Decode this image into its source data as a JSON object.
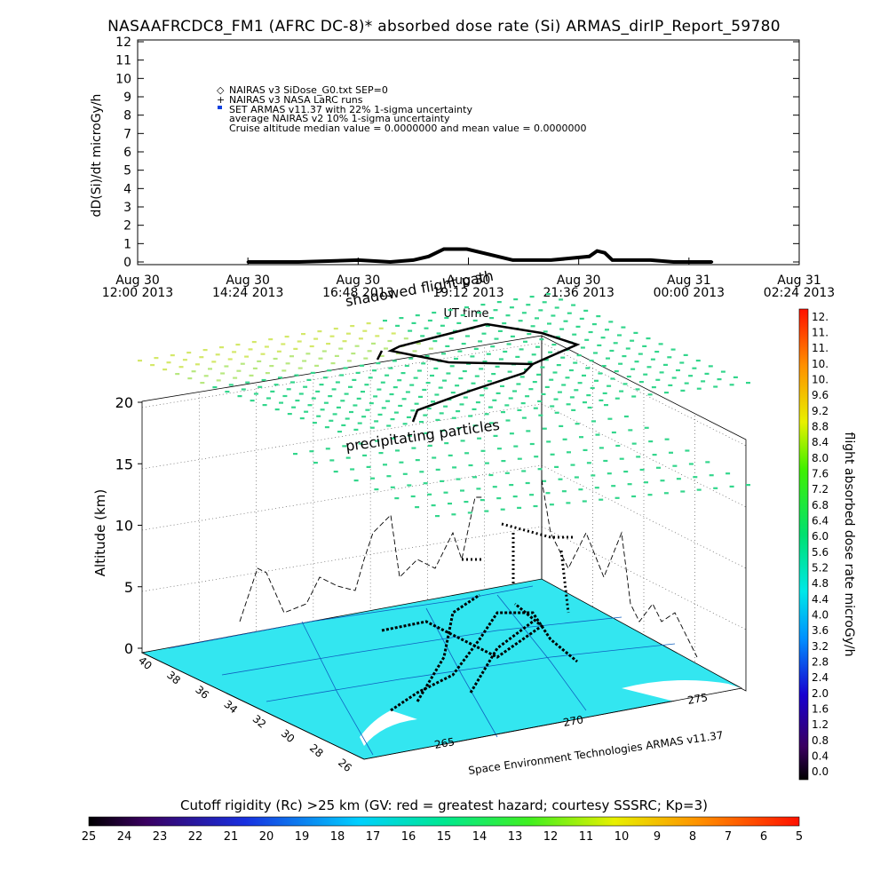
{
  "title": "NASAAFRCDC8_FM1 (AFRC DC-8)* absorbed dose rate (Si) ARMAS_dirIP_Report_59780",
  "top_chart": {
    "ylabel": "dD(Si)/dt microGy/h",
    "xlabel": "UT time",
    "legend": [
      "NAIRAS v3 SiDose_G0.txt SEP=0",
      "NAIRAS v3 NASA LaRC runs",
      "SET ARMAS v11.37 with 22% 1-sigma uncertainty",
      "average NAIRAS v2 10% 1-sigma uncertainty",
      "Cruise altitude median value = 0.0000000 and mean value = 0.0000000"
    ],
    "yticks": [
      "0",
      "1",
      "2",
      "3",
      "4",
      "5",
      "6",
      "7",
      "8",
      "9",
      "10",
      "11",
      "12"
    ],
    "xticks": [
      [
        "Aug 30",
        "12:00 2013"
      ],
      [
        "Aug 30",
        "14:24 2013"
      ],
      [
        "Aug 30",
        "16:48 2013"
      ],
      [
        "Aug 30",
        "19:12 2013"
      ],
      [
        "Aug 30",
        "21:36 2013"
      ],
      [
        "Aug 31",
        "00:00 2013"
      ],
      [
        "Aug 31",
        "02:24 2013"
      ]
    ]
  },
  "chart_data": [
    {
      "type": "line",
      "title": "NASAAFRCDC8_FM1 (AFRC DC-8)* absorbed dose rate (Si) ARMAS_dirIP_Report_59780",
      "xlabel": "UT time",
      "ylabel": "dD(Si)/dt microGy/h",
      "ylim": [
        0,
        12
      ],
      "xlim": [
        "Aug 30 12:00 2013",
        "Aug 31 02:24 2013"
      ],
      "grid": false,
      "legend_position": "top-left",
      "series": [
        {
          "name": "NAIRAS v3 SiDose_G0.txt SEP=0",
          "x": [
            "14:24",
            "15:30",
            "16:48",
            "17:30",
            "18:00",
            "18:20",
            "18:40",
            "19:10",
            "19:40",
            "20:10",
            "21:00",
            "21:50",
            "22:00",
            "22:10",
            "22:20",
            "22:40",
            "23:10",
            "23:40",
            "00:00",
            "00:30"
          ],
          "values": [
            0.0,
            0.0,
            0.1,
            0.0,
            0.1,
            0.3,
            0.7,
            0.7,
            0.4,
            0.1,
            0.1,
            0.3,
            0.6,
            0.5,
            0.1,
            0.1,
            0.1,
            0.0,
            0.0,
            0.0
          ]
        }
      ]
    },
    {
      "type": "scatter",
      "title": "",
      "xlabel": "",
      "ylabel": "Altitude (km)",
      "zticks": [
        "0",
        "5",
        "10",
        "15",
        "20"
      ],
      "lat_ticks": [
        "40",
        "38",
        "36",
        "34",
        "32",
        "30",
        "28",
        "26"
      ],
      "lon_ticks": [
        "265",
        "270",
        "275"
      ],
      "annotations": [
        "shadowed flight path",
        "precipitating particles",
        "Space Environment Technologies ARMAS v11.37"
      ],
      "colorbar": {
        "label": "flight absorbed dose rate microGy/h",
        "ticks": [
          "0.0",
          "0.4",
          "0.8",
          "1.2",
          "1.6",
          "2.0",
          "2.4",
          "2.8",
          "3.2",
          "3.6",
          "4.0",
          "4.4",
          "4.8",
          "5.2",
          "5.6",
          "6.0",
          "6.4",
          "6.8",
          "7.2",
          "7.6",
          "8.0",
          "8.4",
          "8.8",
          "9.2",
          "9.6",
          "10.",
          "10.",
          "11.",
          "11.",
          "12."
        ]
      },
      "rigidity_bar": {
        "label": "Cutoff rigidity (Rc) >25 km (GV: red = greatest hazard; courtesy SSSRC; Kp=3)",
        "ticks": [
          "25",
          "24",
          "23",
          "22",
          "21",
          "20",
          "19",
          "18",
          "17",
          "16",
          "15",
          "14",
          "13",
          "12",
          "11",
          "10",
          "9",
          "8",
          "7",
          "6",
          "5"
        ]
      }
    }
  ],
  "colors": {
    "map_fill": "#33e6f0",
    "particles_back": "#c8e87a",
    "particles_front": "#33d68c",
    "path": "#000000"
  }
}
